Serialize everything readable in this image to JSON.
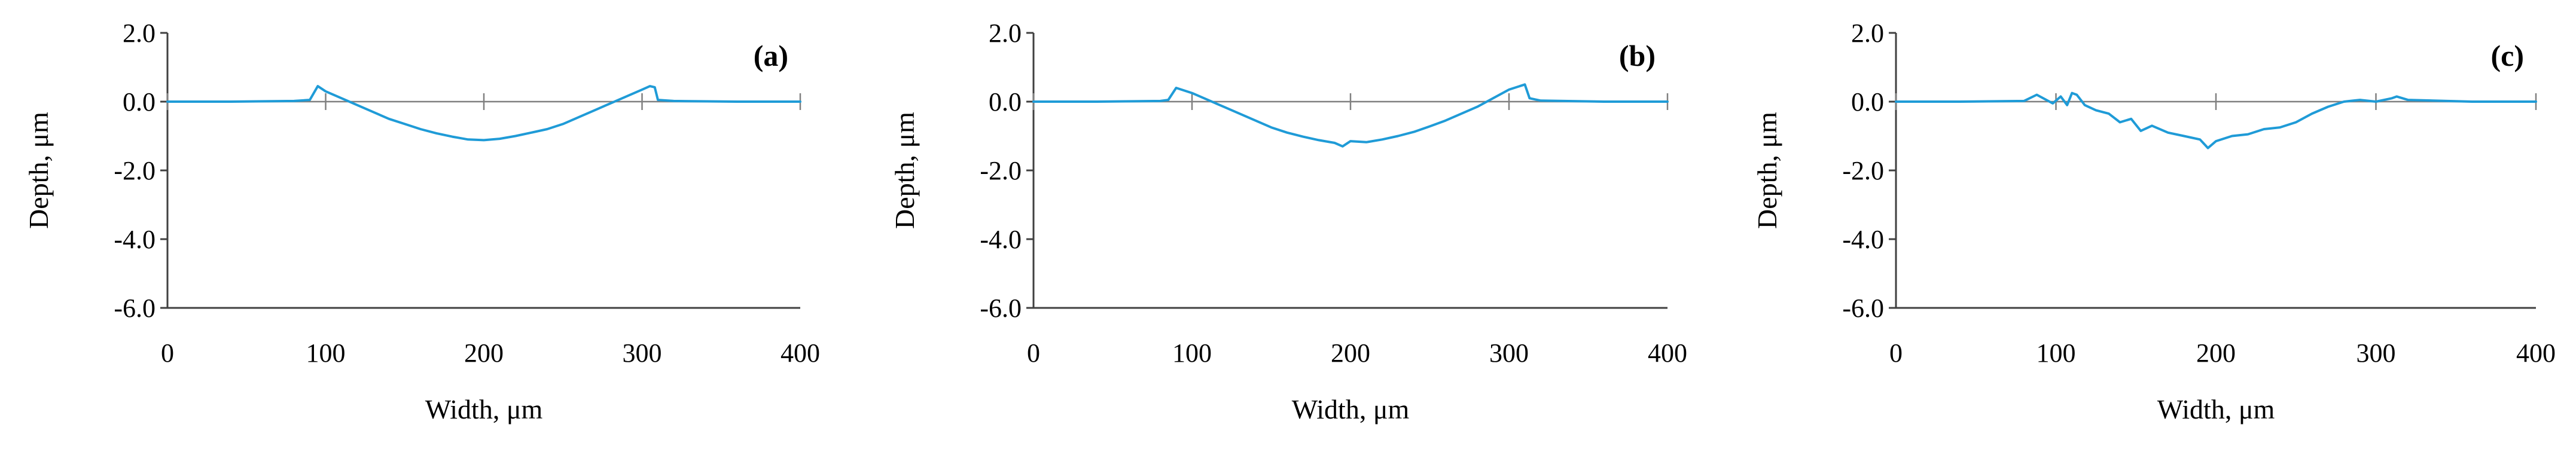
{
  "chart_data": [
    {
      "type": "line",
      "panel_label": "(a)",
      "xlabel": "Width, μm",
      "ylabel": "Depth, μm",
      "xlim": [
        0,
        400
      ],
      "ylim": [
        -6,
        2
      ],
      "x_ticks": [
        "0",
        "100",
        "200",
        "300",
        "400"
      ],
      "y_ticks": [
        "2.0",
        "0.0",
        "-2.0",
        "-4.0",
        "-6.0"
      ],
      "grid": false,
      "legend": "none",
      "color": "#1f9bd7",
      "series": [
        {
          "x": [
            0,
            40,
            80,
            90,
            95,
            100,
            110,
            120,
            130,
            140,
            150,
            160,
            170,
            180,
            190,
            200,
            210,
            220,
            230,
            240,
            250,
            260,
            270,
            280,
            290,
            300,
            305,
            308,
            310,
            320,
            360,
            400
          ],
          "y": [
            0.0,
            0.0,
            0.02,
            0.05,
            0.45,
            0.3,
            0.1,
            -0.1,
            -0.3,
            -0.5,
            -0.65,
            -0.8,
            -0.92,
            -1.02,
            -1.1,
            -1.12,
            -1.08,
            -1.0,
            -0.9,
            -0.8,
            -0.65,
            -0.45,
            -0.25,
            -0.05,
            0.15,
            0.35,
            0.45,
            0.42,
            0.05,
            0.02,
            0.0,
            0.0
          ]
        }
      ]
    },
    {
      "type": "line",
      "panel_label": "(b)",
      "xlabel": "Width, μm",
      "ylabel": "Depth, μm",
      "xlim": [
        0,
        400
      ],
      "ylim": [
        -6,
        2
      ],
      "x_ticks": [
        "0",
        "100",
        "200",
        "300",
        "400"
      ],
      "y_ticks": [
        "2.0",
        "0.0",
        "-2.0",
        "-4.0",
        "-6.0"
      ],
      "grid": false,
      "legend": "none",
      "color": "#1f9bd7",
      "series": [
        {
          "x": [
            0,
            40,
            80,
            85,
            90,
            100,
            110,
            120,
            130,
            140,
            150,
            160,
            170,
            180,
            190,
            195,
            200,
            210,
            220,
            230,
            240,
            250,
            260,
            270,
            280,
            290,
            300,
            310,
            313,
            320,
            360,
            400
          ],
          "y": [
            0.0,
            0.0,
            0.02,
            0.05,
            0.4,
            0.25,
            0.05,
            -0.15,
            -0.35,
            -0.55,
            -0.75,
            -0.9,
            -1.02,
            -1.12,
            -1.2,
            -1.3,
            -1.15,
            -1.18,
            -1.1,
            -1.0,
            -0.88,
            -0.72,
            -0.55,
            -0.35,
            -0.15,
            0.1,
            0.35,
            0.5,
            0.1,
            0.03,
            0.0,
            0.0
          ]
        }
      ]
    },
    {
      "type": "line",
      "panel_label": "(c)",
      "xlabel": "Width, μm",
      "ylabel": "Depth, μm",
      "xlim": [
        0,
        400
      ],
      "ylim": [
        -6,
        2
      ],
      "x_ticks": [
        "0",
        "100",
        "200",
        "300",
        "400"
      ],
      "y_ticks": [
        "2.0",
        "0.0",
        "-2.0",
        "-4.0",
        "-6.0"
      ],
      "grid": false,
      "legend": "none",
      "color": "#1f9bd7",
      "series": [
        {
          "x": [
            0,
            40,
            80,
            88,
            92,
            98,
            103,
            107,
            110,
            113,
            118,
            125,
            133,
            140,
            147,
            153,
            160,
            170,
            180,
            190,
            195,
            200,
            210,
            220,
            230,
            240,
            250,
            260,
            270,
            280,
            290,
            300,
            310,
            313,
            320,
            360,
            400
          ],
          "y": [
            0.0,
            0.0,
            0.02,
            0.2,
            0.1,
            -0.05,
            0.15,
            -0.1,
            0.25,
            0.2,
            -0.1,
            -0.25,
            -0.35,
            -0.6,
            -0.5,
            -0.85,
            -0.7,
            -0.9,
            -1.0,
            -1.1,
            -1.35,
            -1.15,
            -1.0,
            -0.95,
            -0.8,
            -0.75,
            -0.6,
            -0.35,
            -0.15,
            0.0,
            0.05,
            0.0,
            0.1,
            0.15,
            0.05,
            0.0,
            0.0
          ]
        }
      ]
    }
  ]
}
